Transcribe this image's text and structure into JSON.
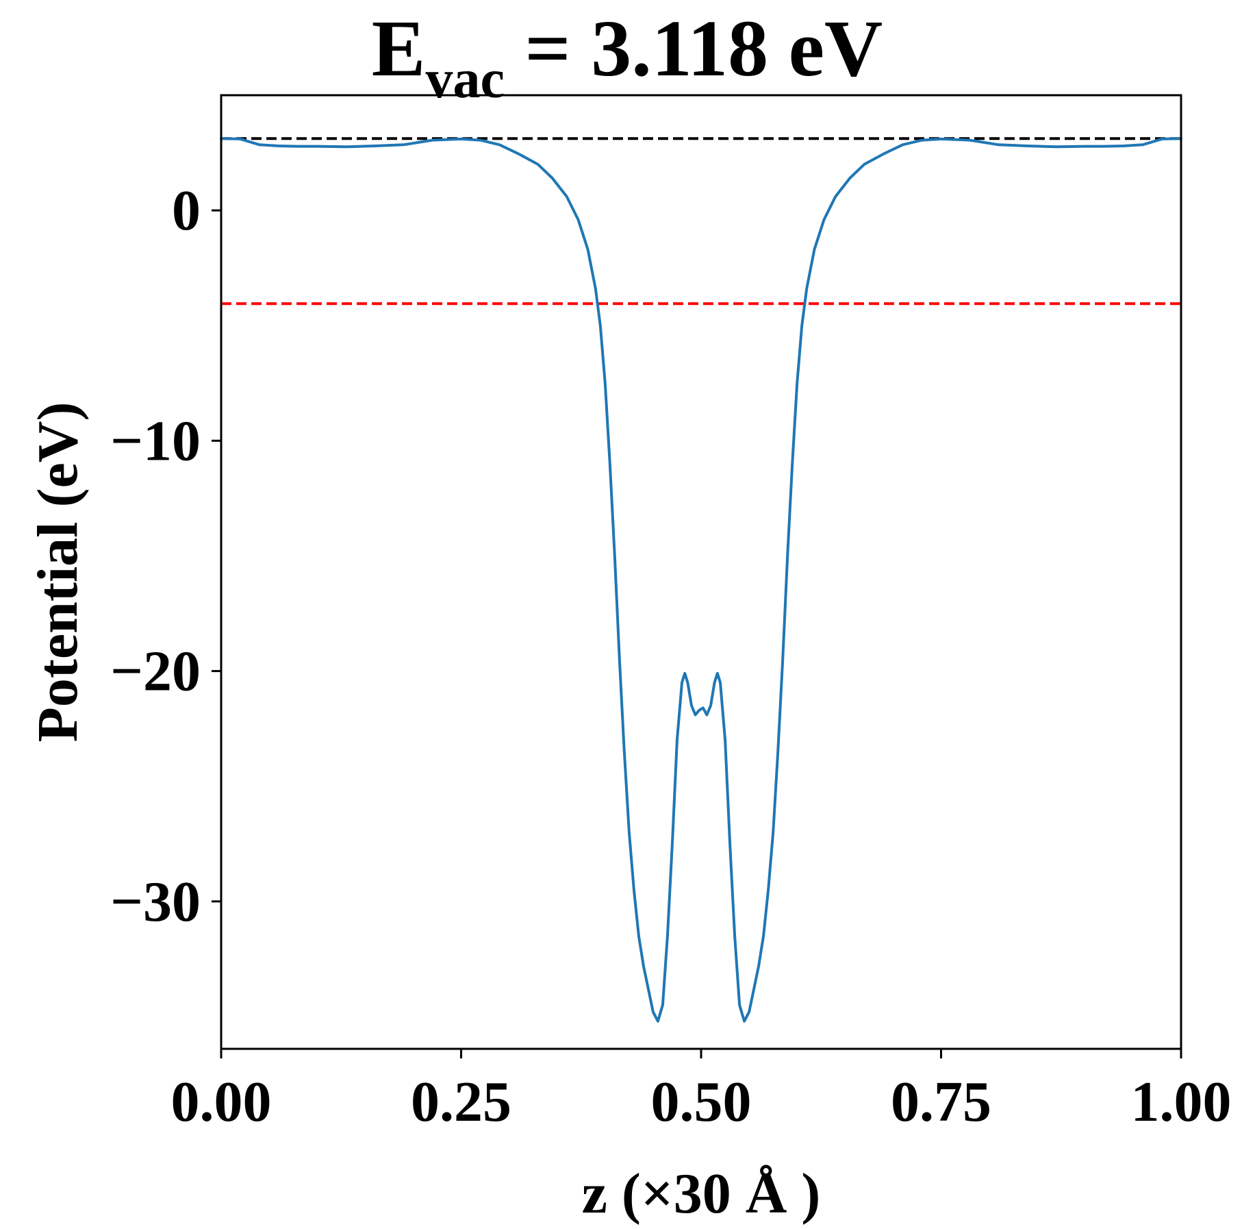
{
  "chart_data": {
    "type": "line",
    "title": {
      "main": "E",
      "subscript": "vac",
      "rest": " = 3.118 eV"
    },
    "xlabel": "z (×30 Å )",
    "ylabel": "Potential (eV)",
    "xlim": [
      0,
      1
    ],
    "ylim": [
      -36.4,
      5.0
    ],
    "grid": false,
    "legend": "none",
    "xticks": [
      {
        "value": 0.0,
        "label": "0.00"
      },
      {
        "value": 0.25,
        "label": "0.25"
      },
      {
        "value": 0.5,
        "label": "0.50"
      },
      {
        "value": 0.75,
        "label": "0.75"
      },
      {
        "value": 1.0,
        "label": "1.00"
      }
    ],
    "yticks": [
      {
        "value": 0,
        "label": "0"
      },
      {
        "value": -10,
        "label": "−10"
      },
      {
        "value": -20,
        "label": "−20"
      },
      {
        "value": -30,
        "label": "−30"
      }
    ],
    "reference_lines": [
      {
        "y": 3.118,
        "color": "#000000",
        "style": "dashed"
      },
      {
        "y": -4.05,
        "color": "#ff0000",
        "style": "dashed"
      }
    ],
    "series": [
      {
        "color": "#1f77b4",
        "points": [
          [
            0.0,
            3.12
          ],
          [
            0.02,
            3.1
          ],
          [
            0.04,
            2.85
          ],
          [
            0.06,
            2.8
          ],
          [
            0.08,
            2.78
          ],
          [
            0.1,
            2.78
          ],
          [
            0.13,
            2.76
          ],
          [
            0.16,
            2.8
          ],
          [
            0.19,
            2.85
          ],
          [
            0.22,
            3.05
          ],
          [
            0.25,
            3.1
          ],
          [
            0.27,
            3.05
          ],
          [
            0.29,
            2.85
          ],
          [
            0.31,
            2.45
          ],
          [
            0.33,
            2.0
          ],
          [
            0.345,
            1.4
          ],
          [
            0.36,
            0.6
          ],
          [
            0.372,
            -0.4
          ],
          [
            0.382,
            -1.7
          ],
          [
            0.39,
            -3.4
          ],
          [
            0.395,
            -5.0
          ],
          [
            0.4,
            -7.5
          ],
          [
            0.405,
            -11.0
          ],
          [
            0.41,
            -15.0
          ],
          [
            0.415,
            -19.5
          ],
          [
            0.42,
            -23.5
          ],
          [
            0.425,
            -27.0
          ],
          [
            0.43,
            -29.5
          ],
          [
            0.435,
            -31.5
          ],
          [
            0.44,
            -32.8
          ],
          [
            0.445,
            -33.8
          ],
          [
            0.45,
            -34.8
          ],
          [
            0.455,
            -35.2
          ],
          [
            0.46,
            -34.5
          ],
          [
            0.465,
            -31.5
          ],
          [
            0.47,
            -27.5
          ],
          [
            0.475,
            -23.0
          ],
          [
            0.48,
            -20.5
          ],
          [
            0.483,
            -20.1
          ],
          [
            0.486,
            -20.5
          ],
          [
            0.49,
            -21.5
          ],
          [
            0.494,
            -21.9
          ],
          [
            0.498,
            -21.7
          ],
          [
            0.502,
            -21.6
          ],
          [
            0.506,
            -21.9
          ],
          [
            0.51,
            -21.5
          ],
          [
            0.514,
            -20.5
          ],
          [
            0.517,
            -20.1
          ],
          [
            0.52,
            -20.5
          ],
          [
            0.525,
            -23.0
          ],
          [
            0.53,
            -27.5
          ],
          [
            0.535,
            -31.5
          ],
          [
            0.54,
            -34.5
          ],
          [
            0.545,
            -35.2
          ],
          [
            0.55,
            -34.8
          ],
          [
            0.555,
            -33.8
          ],
          [
            0.56,
            -32.8
          ],
          [
            0.565,
            -31.5
          ],
          [
            0.57,
            -29.5
          ],
          [
            0.575,
            -27.0
          ],
          [
            0.58,
            -23.5
          ],
          [
            0.585,
            -19.5
          ],
          [
            0.59,
            -15.0
          ],
          [
            0.595,
            -11.0
          ],
          [
            0.6,
            -7.5
          ],
          [
            0.605,
            -5.0
          ],
          [
            0.61,
            -3.4
          ],
          [
            0.618,
            -1.7
          ],
          [
            0.628,
            -0.4
          ],
          [
            0.64,
            0.6
          ],
          [
            0.655,
            1.4
          ],
          [
            0.67,
            2.0
          ],
          [
            0.69,
            2.45
          ],
          [
            0.71,
            2.85
          ],
          [
            0.73,
            3.05
          ],
          [
            0.75,
            3.1
          ],
          [
            0.78,
            3.05
          ],
          [
            0.81,
            2.85
          ],
          [
            0.84,
            2.8
          ],
          [
            0.87,
            2.76
          ],
          [
            0.9,
            2.78
          ],
          [
            0.92,
            2.78
          ],
          [
            0.94,
            2.8
          ],
          [
            0.96,
            2.85
          ],
          [
            0.98,
            3.1
          ],
          [
            1.0,
            3.12
          ]
        ]
      }
    ]
  }
}
